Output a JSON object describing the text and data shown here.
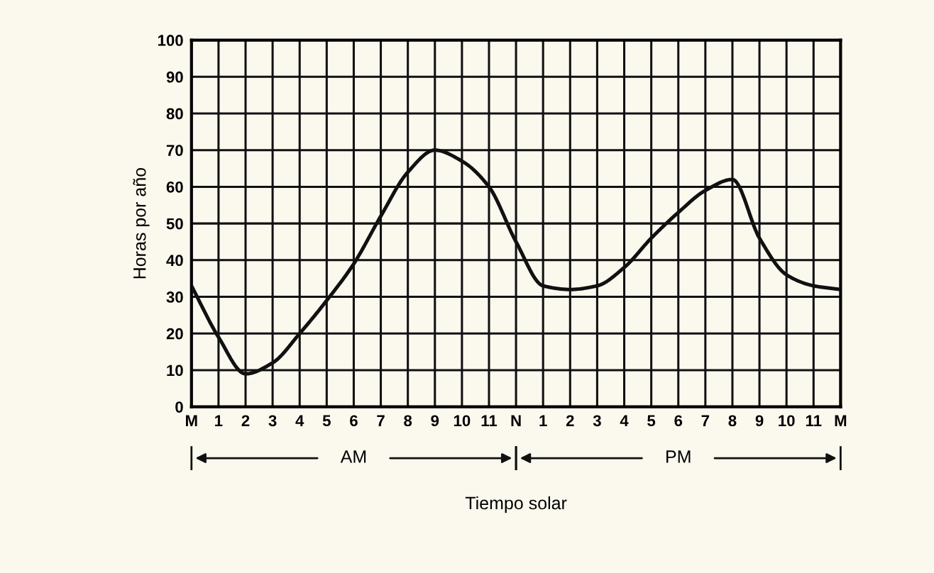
{
  "chart_data": {
    "type": "line",
    "xlabel": "Tiempo solar",
    "ylabel": "Horas por año",
    "categories": [
      "M",
      "1",
      "2",
      "3",
      "4",
      "5",
      "6",
      "7",
      "8",
      "9",
      "10",
      "11",
      "N",
      "1",
      "2",
      "3",
      "4",
      "5",
      "6",
      "7",
      "8",
      "9",
      "10",
      "11",
      "M"
    ],
    "series": [
      {
        "color": "#111111",
        "values": [
          33,
          19,
          9,
          12,
          20,
          29,
          39,
          52,
          64,
          70,
          67,
          60,
          45,
          33,
          32,
          33,
          38,
          46,
          53,
          59,
          62,
          46,
          36,
          33,
          32
        ]
      }
    ],
    "ylim": [
      0,
      100
    ],
    "yticks": [
      0,
      10,
      20,
      30,
      40,
      50,
      60,
      70,
      80,
      90,
      100
    ],
    "grid": true,
    "legend": false,
    "marker": "none",
    "line_style": "solid",
    "annotations": [
      "AM",
      "PM"
    ]
  }
}
